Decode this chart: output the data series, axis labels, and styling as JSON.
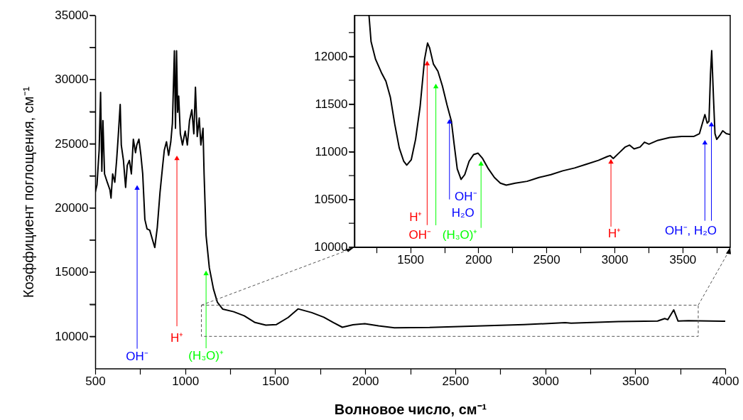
{
  "chart_data": [
    {
      "type": "line",
      "xlabel": "Волновое число, см⁻¹",
      "ylabel": "Коэффициент поглощения, см⁻¹",
      "xlim": [
        500,
        4000
      ],
      "ylim": [
        7500,
        35000
      ],
      "xticks": [
        500,
        {
          "value": 750,
          "label": null
        },
        1000,
        {
          "value": 1250,
          "label": null
        },
        1500,
        {
          "value": 1750,
          "label": null
        },
        2000,
        {
          "value": 2250,
          "label": null
        },
        2500,
        {
          "value": 2750,
          "label": null
        },
        3000,
        {
          "value": 3250,
          "label": null
        },
        3500,
        {
          "value": 3750,
          "label": null
        },
        4000
      ],
      "yticks": [
        10000,
        {
          "value": 12500,
          "label": null
        },
        15000,
        {
          "value": 17500,
          "label": null
        },
        20000,
        {
          "value": 22500,
          "label": null
        },
        25000,
        {
          "value": 27500,
          "label": null
        },
        30000,
        {
          "value": 32500,
          "label": null
        },
        35000
      ],
      "x": [
        500,
        510,
        522,
        530,
        537,
        543,
        552,
        567,
        582,
        588,
        597,
        609,
        619,
        627,
        639,
        645,
        657,
        669,
        678,
        690,
        701,
        712,
        724,
        731,
        743,
        754,
        764,
        776,
        788,
        803,
        816,
        831,
        845,
        860,
        875,
        884,
        896,
        908,
        920,
        929,
        940,
        946,
        952,
        958,
        964,
        973,
        985,
        1000,
        1012,
        1024,
        1037,
        1048,
        1057,
        1067,
        1078,
        1087,
        1099,
        1105,
        1116,
        1134,
        1157,
        1179,
        1209,
        1269,
        1328,
        1388,
        1448,
        1507,
        1572,
        1627,
        1703,
        1770,
        1823,
        1873,
        1932,
        1998,
        2074,
        2162,
        2358,
        2620,
        2882,
        3111,
        3144,
        3406,
        3624,
        3664,
        3681,
        3714,
        3738,
        3795,
        4000
      ],
      "series": [
        {
          "color": "#000000",
          "values": [
            21190,
            21800,
            24500,
            29000,
            22850,
            26800,
            22650,
            22000,
            21400,
            20770,
            22650,
            22000,
            23700,
            25350,
            28060,
            24900,
            23700,
            21600,
            23300,
            23700,
            22650,
            25350,
            24300,
            24900,
            25350,
            24100,
            22650,
            19100,
            18370,
            18270,
            17640,
            16920,
            18480,
            21190,
            23300,
            24500,
            25150,
            24100,
            25150,
            26600,
            32230,
            26200,
            32230,
            27450,
            28700,
            25770,
            24900,
            25980,
            24900,
            26800,
            27640,
            25770,
            29400,
            25560,
            27000,
            24900,
            26200,
            22650,
            17850,
            15350,
            13690,
            12650,
            12120,
            11920,
            11600,
            11080,
            10870,
            10920,
            11470,
            12140,
            11850,
            11490,
            11070,
            10710,
            10900,
            10990,
            10820,
            10670,
            10690,
            10800,
            10910,
            11070,
            11030,
            11150,
            11190,
            11390,
            11300,
            12060,
            11190,
            11220,
            11180
          ]
        }
      ],
      "annotations": [
        {
          "text": "OH⁻",
          "x": 733,
          "y": 21600
        },
        {
          "text": "H⁺",
          "x": 954,
          "y": 23900
        },
        {
          "text": "(H₃O)⁺",
          "x": 1116,
          "y": 14940
        }
      ]
    },
    {
      "type": "line",
      "xlim": [
        1090,
        3850
      ],
      "ylim": [
        10000,
        12430
      ],
      "xticks": [
        {
          "value": 1250,
          "label": null
        },
        1500,
        {
          "value": 1750,
          "label": null
        },
        2000,
        {
          "value": 2250,
          "label": null
        },
        2500,
        {
          "value": 2750,
          "label": null
        },
        3000,
        {
          "value": 3250,
          "label": null
        },
        3500,
        {
          "value": 3750,
          "label": null
        }
      ],
      "yticks": [
        10000,
        {
          "value": 10250,
          "label": null
        },
        10500,
        {
          "value": 10750,
          "label": null
        },
        11000,
        {
          "value": 11250,
          "label": null
        },
        11500,
        {
          "value": 11750,
          "label": null
        },
        12000,
        {
          "value": 12250,
          "label": null
        }
      ],
      "x": [
        1197,
        1212,
        1245,
        1288,
        1321,
        1354,
        1386,
        1419,
        1452,
        1474,
        1507,
        1539,
        1572,
        1605,
        1627,
        1642,
        1670,
        1703,
        1736,
        1770,
        1802,
        1823,
        1845,
        1873,
        1900,
        1932,
        1965,
        1998,
        2031,
        2074,
        2118,
        2162,
        2205,
        2271,
        2358,
        2445,
        2533,
        2620,
        2707,
        2795,
        2882,
        2948,
        2969,
        2991,
        3035,
        3079,
        3111,
        3144,
        3188,
        3220,
        3253,
        3319,
        3406,
        3493,
        3581,
        3624,
        3646,
        3664,
        3681,
        3694,
        3705,
        3714,
        3727,
        3738,
        3751,
        3773,
        3795,
        3821,
        3850
      ],
      "series": [
        {
          "color": "#000000",
          "values": [
            12428,
            12155,
            11970,
            11830,
            11740,
            11570,
            11290,
            11040,
            10900,
            10860,
            10915,
            11130,
            11470,
            11970,
            12140,
            12090,
            11920,
            11845,
            11690,
            11490,
            11320,
            11070,
            10820,
            10710,
            10760,
            10900,
            10970,
            10985,
            10930,
            10820,
            10730,
            10670,
            10650,
            10670,
            10690,
            10730,
            10760,
            10800,
            10830,
            10870,
            10910,
            10950,
            10960,
            10930,
            10990,
            11050,
            11070,
            11030,
            11050,
            11100,
            11080,
            11120,
            11150,
            11160,
            11160,
            11190,
            11300,
            11390,
            11300,
            11320,
            11810,
            12060,
            11570,
            11190,
            11130,
            11170,
            11220,
            11190,
            11180
          ]
        }
      ],
      "annotations": [
        {
          "text": "H⁺",
          "x": 1624,
          "y": 11930
        },
        {
          "text": "OH⁻",
          "x": 1624,
          "y": 11930
        },
        {
          "text": "(H₃O)⁺",
          "x": 1688,
          "y": 11690
        },
        {
          "text": "OH⁻",
          "x": 1788,
          "y": 11320
        },
        {
          "text": "H₂O",
          "x": 1788,
          "y": 11320
        },
        {
          "text": "H⁺",
          "x": 2974,
          "y": 10900
        },
        {
          "text": "OH⁻, H₂O",
          "x": 3712,
          "y": 11290
        }
      ]
    }
  ]
}
